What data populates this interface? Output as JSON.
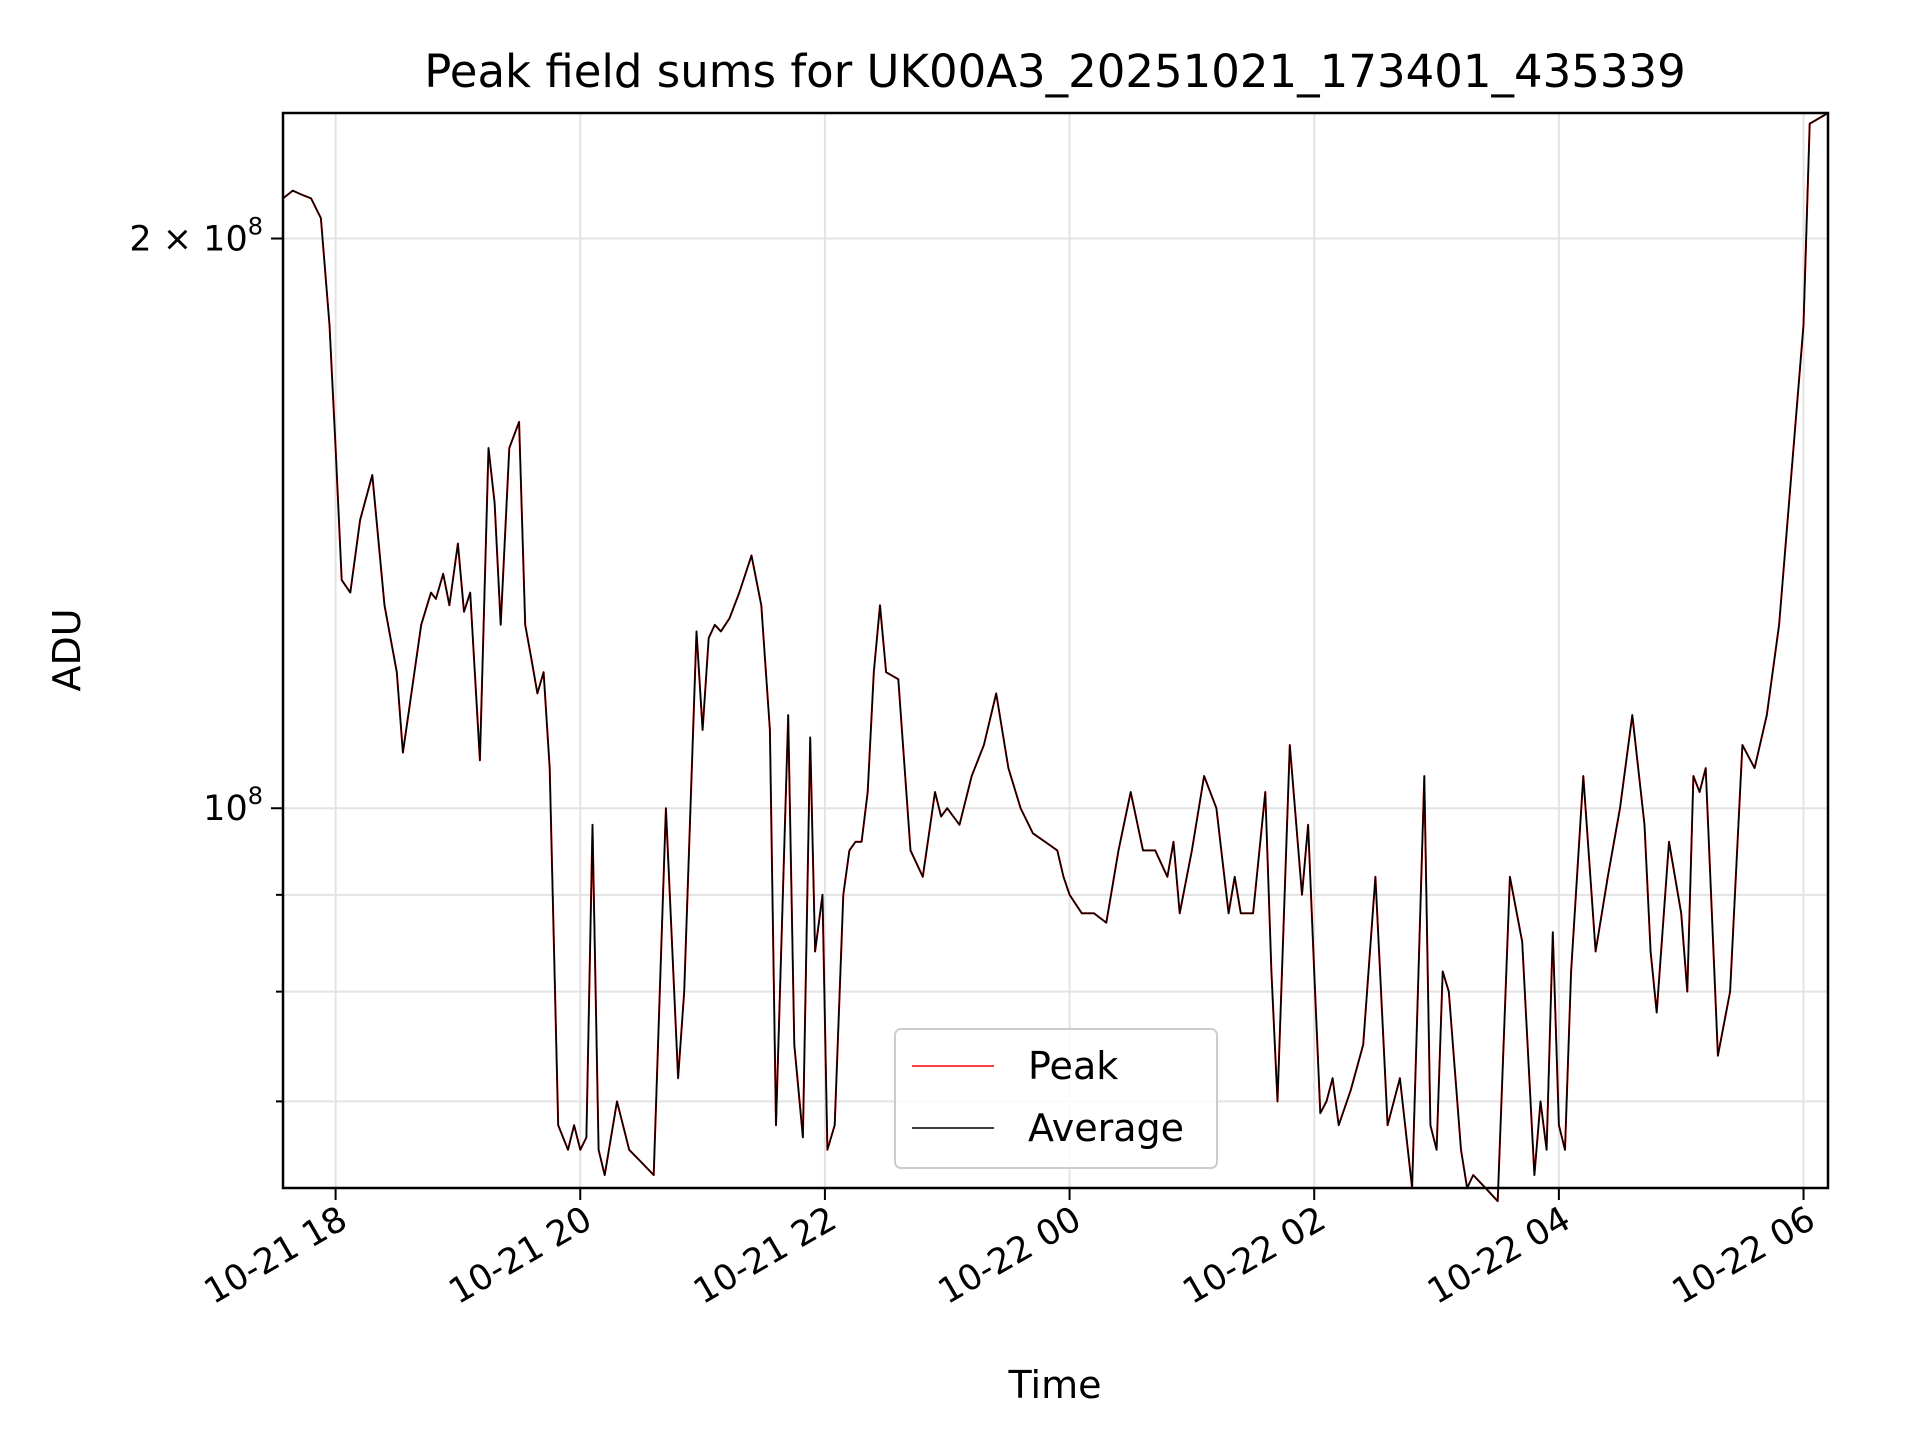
{
  "chart_data": {
    "type": "line",
    "title": "Peak field sums for UK00A3_20251021_173401_435339",
    "xlabel": "Time",
    "ylabel": "ADU",
    "yscale": "log",
    "ylim": [
      63000000,
      233000000
    ],
    "xlim_hours": [
      -0.43,
      12.2
    ],
    "x_unit": "hours since 2025-10-21 18:00",
    "grid": true,
    "legend_position": "lower-center",
    "x_ticks": [
      {
        "value": 0,
        "label": "10-21 18"
      },
      {
        "value": 2,
        "label": "10-21 20"
      },
      {
        "value": 4,
        "label": "10-21 22"
      },
      {
        "value": 6,
        "label": "10-22 00"
      },
      {
        "value": 8,
        "label": "10-22 02"
      },
      {
        "value": 10,
        "label": "10-22 04"
      },
      {
        "value": 12,
        "label": "10-22 06"
      }
    ],
    "y_major_ticks": [
      {
        "value": 100000000,
        "base": "10",
        "exp": "8",
        "mult": ""
      },
      {
        "value": 200000000,
        "base": "10",
        "exp": "8",
        "mult": "2 × "
      }
    ],
    "y_minor_gridlines": [
      70000000,
      80000000,
      90000000
    ],
    "colors": {
      "peak": "#ff0000",
      "average": "#000000"
    },
    "x": [
      -0.43,
      -0.35,
      -0.28,
      -0.2,
      -0.12,
      -0.05,
      0.0,
      0.05,
      0.12,
      0.2,
      0.3,
      0.4,
      0.5,
      0.55,
      0.62,
      0.7,
      0.78,
      0.82,
      0.88,
      0.93,
      1.0,
      1.05,
      1.1,
      1.18,
      1.25,
      1.3,
      1.35,
      1.42,
      1.5,
      1.55,
      1.6,
      1.65,
      1.7,
      1.75,
      1.82,
      1.9,
      1.95,
      2.0,
      2.05,
      2.1,
      2.15,
      2.2,
      2.3,
      2.4,
      2.5,
      2.6,
      2.7,
      2.8,
      2.85,
      2.95,
      3.0,
      3.05,
      3.1,
      3.15,
      3.22,
      3.3,
      3.4,
      3.48,
      3.55,
      3.6,
      3.7,
      3.75,
      3.82,
      3.88,
      3.92,
      3.98,
      4.02,
      4.08,
      4.15,
      4.2,
      4.25,
      4.3,
      4.35,
      4.4,
      4.45,
      4.5,
      4.6,
      4.7,
      4.8,
      4.9,
      4.95,
      5.0,
      5.1,
      5.2,
      5.3,
      5.4,
      5.5,
      5.6,
      5.7,
      5.8,
      5.9,
      5.95,
      6.0,
      6.1,
      6.2,
      6.3,
      6.4,
      6.5,
      6.6,
      6.7,
      6.8,
      6.85,
      6.9,
      7.0,
      7.1,
      7.2,
      7.3,
      7.35,
      7.4,
      7.5,
      7.6,
      7.65,
      7.7,
      7.8,
      7.9,
      7.95,
      8.0,
      8.05,
      8.1,
      8.15,
      8.2,
      8.3,
      8.4,
      8.5,
      8.6,
      8.7,
      8.8,
      8.9,
      8.95,
      9.0,
      9.05,
      9.1,
      9.2,
      9.25,
      9.3,
      9.4,
      9.5,
      9.6,
      9.7,
      9.8,
      9.85,
      9.9,
      9.95,
      10.0,
      10.05,
      10.1,
      10.2,
      10.3,
      10.4,
      10.5,
      10.6,
      10.7,
      10.75,
      10.8,
      10.9,
      11.0,
      11.05,
      11.1,
      11.15,
      11.2,
      11.3,
      11.4,
      11.5,
      11.6,
      11.7,
      11.8,
      11.9,
      12.0,
      12.05,
      12.2
    ],
    "series": [
      {
        "name": "Peak",
        "values": [
          210000000,
          212000000,
          211000000,
          210000000,
          205000000,
          180000000,
          155000000,
          132000000,
          130000000,
          142000000,
          150000000,
          128000000,
          118000000,
          107000000,
          115000000,
          125000000,
          130000000,
          129000000,
          133000000,
          128000000,
          138000000,
          127000000,
          130000000,
          106000000,
          155000000,
          145000000,
          125000000,
          155000000,
          160000000,
          125000000,
          120000000,
          115000000,
          118000000,
          105000000,
          68000000,
          66000000,
          68000000,
          66000000,
          67000000,
          98000000,
          66000000,
          64000000,
          70000000,
          66000000,
          65000000,
          64000000,
          100000000,
          72000000,
          80000000,
          124000000,
          110000000,
          123000000,
          125000000,
          124000000,
          126000000,
          130000000,
          136000000,
          128000000,
          110000000,
          68000000,
          112000000,
          75000000,
          67000000,
          109000000,
          84000000,
          90000000,
          66000000,
          68000000,
          90000000,
          95000000,
          96000000,
          96000000,
          102000000,
          118000000,
          128000000,
          118000000,
          117000000,
          95000000,
          92000000,
          102000000,
          99000000,
          100000000,
          98000000,
          104000000,
          108000000,
          115000000,
          105000000,
          100000000,
          97000000,
          96000000,
          95000000,
          92000000,
          90000000,
          88000000,
          88000000,
          87000000,
          95000000,
          102000000,
          95000000,
          95000000,
          92000000,
          96000000,
          88000000,
          95000000,
          104000000,
          100000000,
          88000000,
          92000000,
          88000000,
          88000000,
          102000000,
          82000000,
          70000000,
          108000000,
          90000000,
          98000000,
          82000000,
          69000000,
          70000000,
          72000000,
          68000000,
          71000000,
          75000000,
          92000000,
          68000000,
          72000000,
          63000000,
          104000000,
          68000000,
          66000000,
          82000000,
          80000000,
          66000000,
          63000000,
          64000000,
          63000000,
          62000000,
          92000000,
          85000000,
          64000000,
          70000000,
          66000000,
          86000000,
          68000000,
          66000000,
          82000000,
          104000000,
          84000000,
          92000000,
          100000000,
          112000000,
          98000000,
          84000000,
          78000000,
          96000000,
          88000000,
          80000000,
          104000000,
          102000000,
          105000000,
          74000000,
          80000000,
          108000000,
          105000000,
          112000000,
          125000000,
          150000000,
          180000000,
          230000000,
          233000000
        ]
      },
      {
        "name": "Average",
        "values": [
          210000000,
          212000000,
          211000000,
          210000000,
          205000000,
          180000000,
          155000000,
          132000000,
          130000000,
          142000000,
          150000000,
          128000000,
          118000000,
          107000000,
          115000000,
          125000000,
          130000000,
          129000000,
          133000000,
          128000000,
          138000000,
          127000000,
          130000000,
          106000000,
          155000000,
          145000000,
          125000000,
          155000000,
          160000000,
          125000000,
          120000000,
          115000000,
          118000000,
          105000000,
          68000000,
          66000000,
          68000000,
          66000000,
          67000000,
          98000000,
          66000000,
          64000000,
          70000000,
          66000000,
          65000000,
          64000000,
          100000000,
          72000000,
          80000000,
          124000000,
          110000000,
          123000000,
          125000000,
          124000000,
          126000000,
          130000000,
          136000000,
          128000000,
          110000000,
          68000000,
          112000000,
          75000000,
          67000000,
          109000000,
          84000000,
          90000000,
          66000000,
          68000000,
          90000000,
          95000000,
          96000000,
          96000000,
          102000000,
          118000000,
          128000000,
          118000000,
          117000000,
          95000000,
          92000000,
          102000000,
          99000000,
          100000000,
          98000000,
          104000000,
          108000000,
          115000000,
          105000000,
          100000000,
          97000000,
          96000000,
          95000000,
          92000000,
          90000000,
          88000000,
          88000000,
          87000000,
          95000000,
          102000000,
          95000000,
          95000000,
          92000000,
          96000000,
          88000000,
          95000000,
          104000000,
          100000000,
          88000000,
          92000000,
          88000000,
          88000000,
          102000000,
          82000000,
          70000000,
          108000000,
          90000000,
          98000000,
          82000000,
          69000000,
          70000000,
          72000000,
          68000000,
          71000000,
          75000000,
          92000000,
          68000000,
          72000000,
          63000000,
          104000000,
          68000000,
          66000000,
          82000000,
          80000000,
          66000000,
          63000000,
          64000000,
          63000000,
          62000000,
          92000000,
          85000000,
          64000000,
          70000000,
          66000000,
          86000000,
          68000000,
          66000000,
          82000000,
          104000000,
          84000000,
          92000000,
          100000000,
          112000000,
          98000000,
          84000000,
          78000000,
          96000000,
          88000000,
          80000000,
          104000000,
          102000000,
          105000000,
          74000000,
          80000000,
          108000000,
          105000000,
          112000000,
          125000000,
          150000000,
          180000000,
          230000000,
          233000000
        ]
      }
    ]
  }
}
